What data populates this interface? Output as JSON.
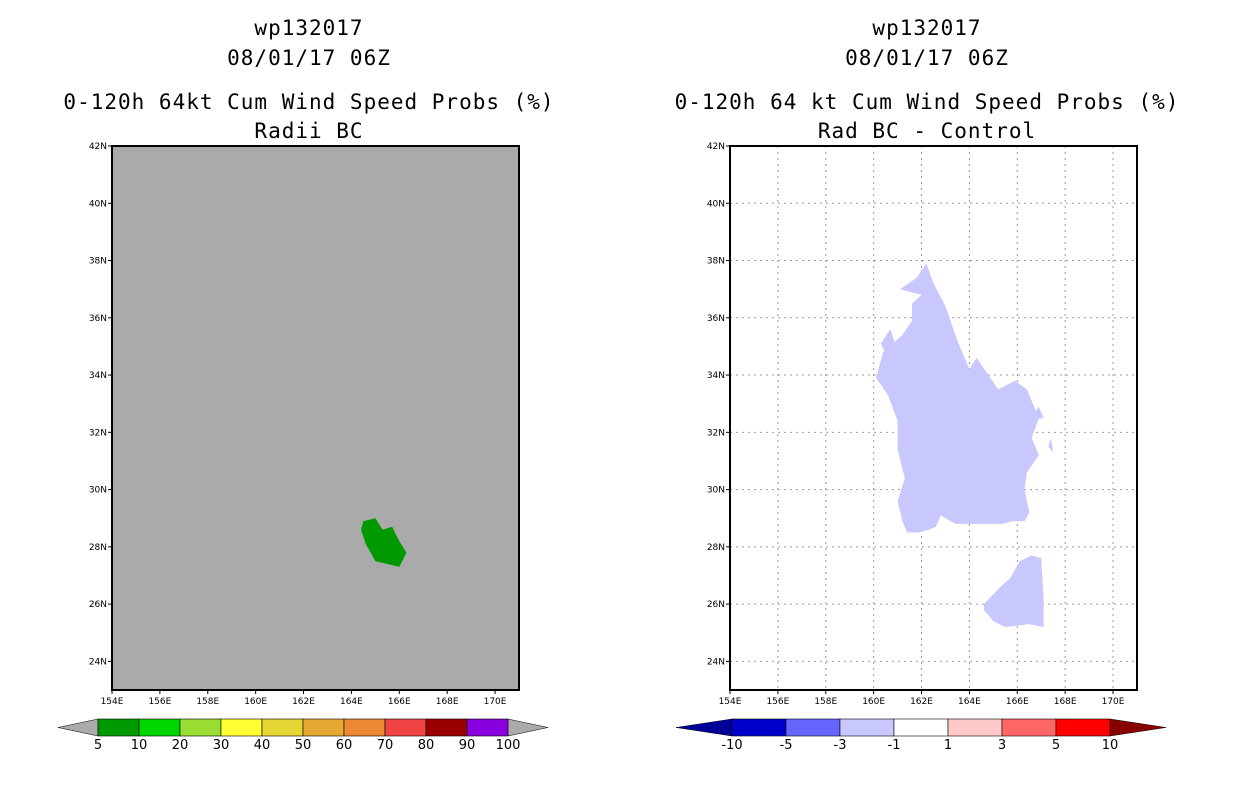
{
  "left_panel": {
    "storm_id": "wp132017",
    "datetime": "08/01/17 06Z",
    "product": "0-120h 64kt Cum Wind Speed Probs (%)",
    "subtitle": "Radii BC",
    "colors": {
      "map_background": "#aaaaaa",
      "prob_5_10": "#009900"
    },
    "colorbar": {
      "colors": [
        "#009900",
        "#00d600",
        "#99dd33",
        "#ffff33",
        "#e6d633",
        "#e6aa33",
        "#ee8833",
        "#ee4444",
        "#990000",
        "#8800dd"
      ],
      "end_color": "#aaaaaa",
      "labels": [
        "5",
        "10",
        "20",
        "30",
        "40",
        "50",
        "60",
        "70",
        "80",
        "90",
        "100"
      ]
    }
  },
  "right_panel": {
    "storm_id": "wp132017",
    "datetime": "08/01/17 06Z",
    "product": "0-120h 64 kt Cum Wind Speed Probs (%)",
    "subtitle": "Rad BC - Control",
    "colors": {
      "map_background": "#ffffff",
      "diff_neg_1_3": "#c8c8ff"
    },
    "colorbar": {
      "colors": [
        "#0000cc",
        "#6666ff",
        "#c8c8ff",
        "#ffffff",
        "#ffc8c8",
        "#ff6666",
        "#ff0000"
      ],
      "low_end_color": "#000099",
      "high_end_color": "#880000",
      "labels": [
        "-10",
        "-5",
        "-3",
        "-1",
        "1",
        "3",
        "5",
        "10"
      ]
    }
  },
  "map_axes": {
    "lon_labels": [
      "154E",
      "156E",
      "158E",
      "160E",
      "162E",
      "164E",
      "166E",
      "168E",
      "170E"
    ],
    "lat_labels": [
      "24N",
      "26N",
      "28N",
      "30N",
      "32N",
      "34N",
      "36N",
      "38N",
      "40N",
      "42N"
    ],
    "lon_range": [
      154,
      171
    ],
    "lat_range": [
      23,
      42
    ]
  },
  "contours": {
    "left_prob_5_10": [
      [
        164.4,
        28.6
      ],
      [
        164.5,
        28.9
      ],
      [
        165.0,
        29.0
      ],
      [
        165.3,
        28.6
      ],
      [
        165.7,
        28.7
      ],
      [
        166.0,
        28.2
      ],
      [
        166.3,
        27.8
      ],
      [
        166.0,
        27.3
      ],
      [
        165.5,
        27.4
      ],
      [
        165.0,
        27.5
      ],
      [
        164.6,
        28.1
      ]
    ],
    "right_diff_main": [
      [
        161.1,
        37.0
      ],
      [
        161.8,
        37.4
      ],
      [
        162.2,
        37.9
      ],
      [
        162.5,
        37.2
      ],
      [
        163.0,
        36.4
      ],
      [
        163.5,
        35.2
      ],
      [
        164.0,
        34.2
      ],
      [
        164.3,
        34.6
      ],
      [
        164.8,
        34.0
      ],
      [
        165.2,
        33.5
      ],
      [
        165.9,
        33.8
      ],
      [
        166.4,
        33.5
      ],
      [
        166.9,
        32.5
      ],
      [
        166.6,
        31.8
      ],
      [
        166.9,
        31.2
      ],
      [
        166.4,
        30.6
      ],
      [
        166.3,
        30.0
      ],
      [
        166.5,
        29.2
      ],
      [
        166.3,
        28.9
      ],
      [
        165.8,
        28.9
      ],
      [
        165.4,
        28.8
      ],
      [
        164.5,
        28.8
      ],
      [
        163.4,
        28.8
      ],
      [
        162.8,
        29.1
      ],
      [
        162.6,
        28.7
      ],
      [
        162.3,
        28.6
      ],
      [
        161.9,
        28.5
      ],
      [
        161.4,
        28.5
      ],
      [
        161.2,
        28.9
      ],
      [
        161.0,
        29.6
      ],
      [
        161.3,
        30.4
      ],
      [
        161.0,
        31.4
      ],
      [
        161.0,
        32.4
      ],
      [
        160.6,
        33.3
      ],
      [
        160.1,
        33.9
      ],
      [
        160.4,
        34.8
      ],
      [
        161.2,
        35.4
      ],
      [
        161.6,
        35.9
      ],
      [
        161.6,
        36.5
      ],
      [
        162.0,
        36.8
      ]
    ],
    "right_diff_notch": [
      [
        160.3,
        35.1
      ],
      [
        160.7,
        35.6
      ],
      [
        160.9,
        35.1
      ],
      [
        160.6,
        34.6
      ]
    ],
    "right_diff_islet_a": [
      [
        166.5,
        32.4
      ],
      [
        166.9,
        32.9
      ],
      [
        167.1,
        32.5
      ]
    ],
    "right_diff_islet_b": [
      [
        167.4,
        31.8
      ],
      [
        167.5,
        31.3
      ],
      [
        167.3,
        31.5
      ]
    ],
    "right_diff_south": [
      [
        164.6,
        26.0
      ],
      [
        165.3,
        26.6
      ],
      [
        165.7,
        26.9
      ],
      [
        166.1,
        27.5
      ],
      [
        166.6,
        27.7
      ],
      [
        167.0,
        27.6
      ],
      [
        167.1,
        26.2
      ],
      [
        167.1,
        25.2
      ],
      [
        166.5,
        25.3
      ],
      [
        165.5,
        25.2
      ],
      [
        165.0,
        25.4
      ],
      [
        164.6,
        25.8
      ]
    ]
  }
}
